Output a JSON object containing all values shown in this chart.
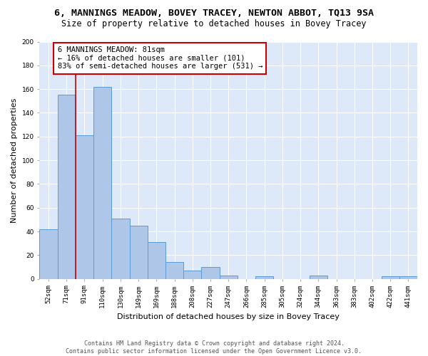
{
  "title": "6, MANNINGS MEADOW, BOVEY TRACEY, NEWTON ABBOT, TQ13 9SA",
  "subtitle": "Size of property relative to detached houses in Bovey Tracey",
  "xlabel": "Distribution of detached houses by size in Bovey Tracey",
  "ylabel": "Number of detached properties",
  "categories": [
    "52sqm",
    "71sqm",
    "91sqm",
    "110sqm",
    "130sqm",
    "149sqm",
    "169sqm",
    "188sqm",
    "208sqm",
    "227sqm",
    "247sqm",
    "266sqm",
    "285sqm",
    "305sqm",
    "324sqm",
    "344sqm",
    "363sqm",
    "383sqm",
    "402sqm",
    "422sqm",
    "441sqm"
  ],
  "values": [
    42,
    155,
    121,
    162,
    51,
    45,
    31,
    14,
    7,
    10,
    3,
    0,
    2,
    0,
    0,
    3,
    0,
    0,
    0,
    2,
    2
  ],
  "bar_color": "#aec6e8",
  "bar_edge_color": "#5b9bd5",
  "background_color": "#dde8f8",
  "grid_color": "white",
  "annotation_text": "6 MANNINGS MEADOW: 81sqm\n← 16% of detached houses are smaller (101)\n83% of semi-detached houses are larger (531) →",
  "annotation_box_edge": "#cc0000",
  "vline_color": "#cc0000",
  "ylim": [
    0,
    200
  ],
  "yticks": [
    0,
    20,
    40,
    60,
    80,
    100,
    120,
    140,
    160,
    180,
    200
  ],
  "footer_text": "Contains HM Land Registry data © Crown copyright and database right 2024.\nContains public sector information licensed under the Open Government Licence v3.0.",
  "title_fontsize": 9.5,
  "subtitle_fontsize": 8.5,
  "xlabel_fontsize": 8,
  "ylabel_fontsize": 8,
  "tick_fontsize": 6.5,
  "annotation_fontsize": 7.5,
  "footer_fontsize": 6
}
